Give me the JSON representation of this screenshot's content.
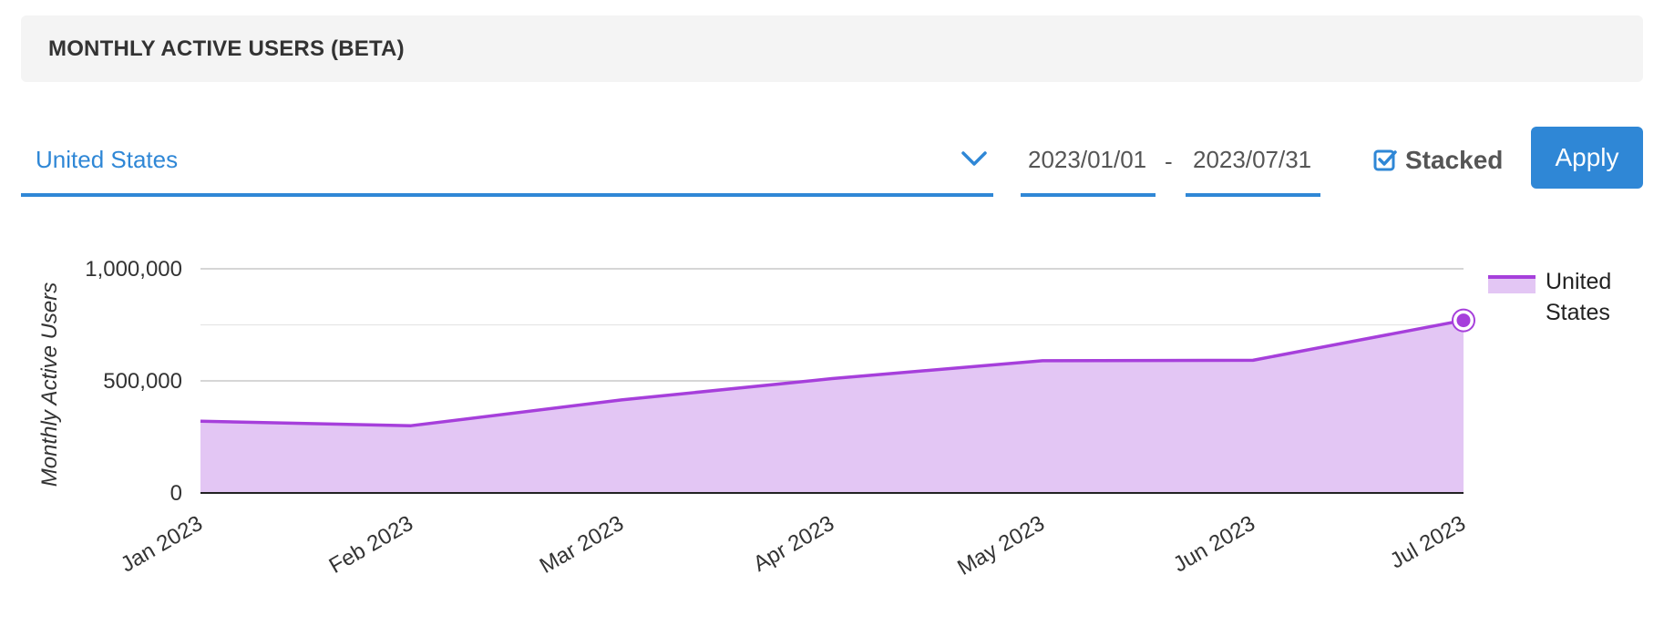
{
  "header": {
    "title": "MONTHLY ACTIVE USERS (BETA)"
  },
  "filters": {
    "country": "United States",
    "date_start": "2023/01/01",
    "date_separator": "-",
    "date_end": "2023/07/31",
    "stacked_label": "Stacked",
    "stacked_checked": true,
    "apply_label": "Apply"
  },
  "colors": {
    "accent": "#2f87d6",
    "series_line": "#a63fdb",
    "series_fill": "#e3c6f4"
  },
  "chart_data": {
    "type": "area",
    "title": "",
    "xlabel": "",
    "ylabel": "Monthly Active Users",
    "categories": [
      "Jan 2023",
      "Feb 2023",
      "Mar 2023",
      "Apr 2023",
      "May 2023",
      "Jun 2023",
      "Jul 2023"
    ],
    "series": [
      {
        "name": "United States",
        "values": [
          320000,
          300000,
          415000,
          510000,
          590000,
          592000,
          770000
        ]
      }
    ],
    "ylim": [
      0,
      1000000
    ],
    "yticks": [
      0,
      500000,
      1000000
    ],
    "ytick_labels": [
      "0",
      "500,000",
      "1,000,000"
    ],
    "grid": true,
    "legend": "right",
    "highlighted_point": "Jul 2023"
  }
}
